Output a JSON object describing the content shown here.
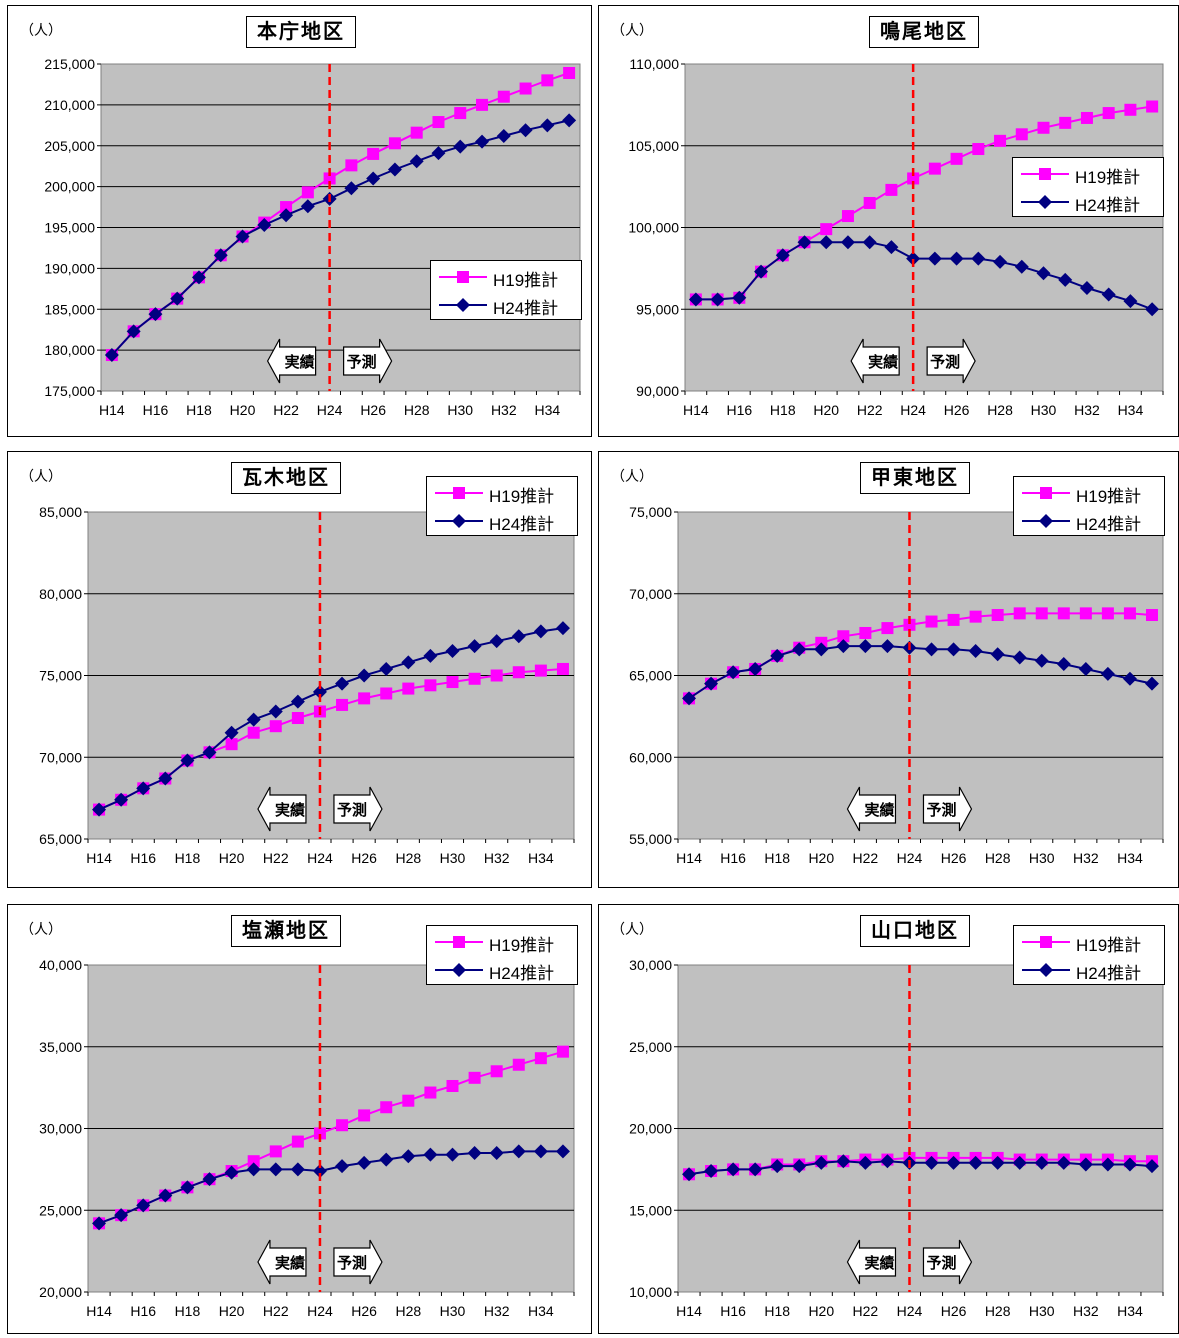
{
  "unit_label": "（人）",
  "x_categories": [
    "H14",
    "H15",
    "H16",
    "H17",
    "H18",
    "H19",
    "H20",
    "H21",
    "H22",
    "H23",
    "H24",
    "H25",
    "H26",
    "H27",
    "H28",
    "H29",
    "H30",
    "H31",
    "H32",
    "H33",
    "H34",
    "H35"
  ],
  "x_tick_labels": [
    "H14",
    "H16",
    "H18",
    "H20",
    "H22",
    "H24",
    "H26",
    "H28",
    "H30",
    "H32",
    "H34"
  ],
  "actual_label": "実績",
  "forecast_label": "予測",
  "divider_at": "H24",
  "colors": {
    "h19": "#ff00ff",
    "h24": "#000080",
    "plot_bg": "#c0c0c0",
    "divider": "#ff0000"
  },
  "chart_data": [
    {
      "type": "line",
      "title": "本庁地区",
      "ylim": [
        175000,
        215000
      ],
      "yticks": [
        "175,000",
        "180,000",
        "185,000",
        "190,000",
        "195,000",
        "200,000",
        "205,000",
        "210,000",
        "215,000"
      ],
      "legend_position": "right-middle",
      "series": [
        {
          "name": "H19推計",
          "values": [
            179400,
            182300,
            184400,
            186300,
            188900,
            191600,
            193900,
            195600,
            197500,
            199300,
            201000,
            202600,
            204000,
            205300,
            206600,
            207900,
            209000,
            210000,
            211000,
            212000,
            213000,
            213900
          ]
        },
        {
          "name": "H24推計",
          "values": [
            179400,
            182300,
            184400,
            186300,
            188900,
            191600,
            193900,
            195300,
            196500,
            197600,
            198500,
            199800,
            201000,
            202100,
            203100,
            204100,
            204900,
            205500,
            206200,
            206900,
            207500,
            208100
          ]
        }
      ]
    },
    {
      "type": "line",
      "title": "鳴尾地区",
      "ylim": [
        90000,
        110000
      ],
      "yticks": [
        "90,000",
        "95,000",
        "100,000",
        "105,000",
        "110,000"
      ],
      "legend_position": "right-upper",
      "series": [
        {
          "name": "H19推計",
          "values": [
            95600,
            95600,
            95700,
            97300,
            98300,
            99100,
            99900,
            100700,
            101500,
            102300,
            103000,
            103600,
            104200,
            104800,
            105300,
            105700,
            106100,
            106400,
            106700,
            107000,
            107200,
            107400
          ]
        },
        {
          "name": "H24推計",
          "values": [
            95600,
            95600,
            95700,
            97300,
            98300,
            99100,
            99100,
            99100,
            99100,
            98800,
            98100,
            98100,
            98100,
            98100,
            97900,
            97600,
            97200,
            96800,
            96300,
            95900,
            95500,
            95000
          ]
        }
      ]
    },
    {
      "type": "line",
      "title": "瓦木地区",
      "ylim": [
        65000,
        85000
      ],
      "yticks": [
        "65,000",
        "70,000",
        "75,000",
        "80,000",
        "85,000"
      ],
      "legend_position": "top-right",
      "series": [
        {
          "name": "H19推計",
          "values": [
            66800,
            67400,
            68100,
            68700,
            69800,
            70300,
            70800,
            71500,
            71900,
            72400,
            72800,
            73200,
            73600,
            73900,
            74200,
            74400,
            74600,
            74800,
            75000,
            75200,
            75300,
            75400
          ]
        },
        {
          "name": "H24推計",
          "values": [
            66800,
            67400,
            68100,
            68700,
            69800,
            70300,
            71500,
            72300,
            72800,
            73400,
            74000,
            74500,
            75000,
            75400,
            75800,
            76200,
            76500,
            76800,
            77100,
            77400,
            77700,
            77900
          ]
        }
      ]
    },
    {
      "type": "line",
      "title": "甲東地区",
      "ylim": [
        55000,
        75000
      ],
      "yticks": [
        "55,000",
        "60,000",
        "65,000",
        "70,000",
        "75,000"
      ],
      "legend_position": "top-right",
      "series": [
        {
          "name": "H19推計",
          "values": [
            63600,
            64500,
            65200,
            65400,
            66200,
            66700,
            67000,
            67400,
            67600,
            67900,
            68100,
            68300,
            68400,
            68600,
            68700,
            68800,
            68800,
            68800,
            68800,
            68800,
            68800,
            68700
          ]
        },
        {
          "name": "H24推計",
          "values": [
            63600,
            64500,
            65200,
            65400,
            66200,
            66600,
            66600,
            66800,
            66800,
            66800,
            66700,
            66600,
            66600,
            66500,
            66300,
            66100,
            65900,
            65700,
            65400,
            65100,
            64800,
            64500
          ]
        }
      ]
    },
    {
      "type": "line",
      "title": "塩瀬地区",
      "ylim": [
        20000,
        40000
      ],
      "yticks": [
        "20,000",
        "25,000",
        "30,000",
        "35,000",
        "40,000"
      ],
      "legend_position": "top-right",
      "series": [
        {
          "name": "H19推計",
          "values": [
            24200,
            24700,
            25300,
            25900,
            26400,
            26900,
            27400,
            28000,
            28600,
            29200,
            29700,
            30200,
            30800,
            31300,
            31700,
            32200,
            32600,
            33100,
            33500,
            33900,
            34300,
            34700
          ]
        },
        {
          "name": "H24推計",
          "values": [
            24200,
            24700,
            25300,
            25900,
            26400,
            26900,
            27300,
            27500,
            27500,
            27500,
            27400,
            27700,
            27900,
            28100,
            28300,
            28400,
            28400,
            28500,
            28500,
            28600,
            28600,
            28600
          ]
        }
      ]
    },
    {
      "type": "line",
      "title": "山口地区",
      "ylim": [
        10000,
        30000
      ],
      "yticks": [
        "10,000",
        "15,000",
        "20,000",
        "25,000",
        "30,000"
      ],
      "legend_position": "top-right",
      "series": [
        {
          "name": "H19推計",
          "values": [
            17200,
            17400,
            17500,
            17500,
            17800,
            17800,
            18000,
            18000,
            18100,
            18100,
            18200,
            18200,
            18200,
            18200,
            18200,
            18100,
            18100,
            18100,
            18100,
            18100,
            18000,
            18000
          ]
        },
        {
          "name": "H24推計",
          "values": [
            17200,
            17400,
            17500,
            17500,
            17700,
            17700,
            17900,
            18000,
            17900,
            18000,
            17900,
            17900,
            17900,
            17900,
            17900,
            17900,
            17900,
            17900,
            17800,
            17800,
            17800,
            17700
          ]
        }
      ]
    }
  ]
}
